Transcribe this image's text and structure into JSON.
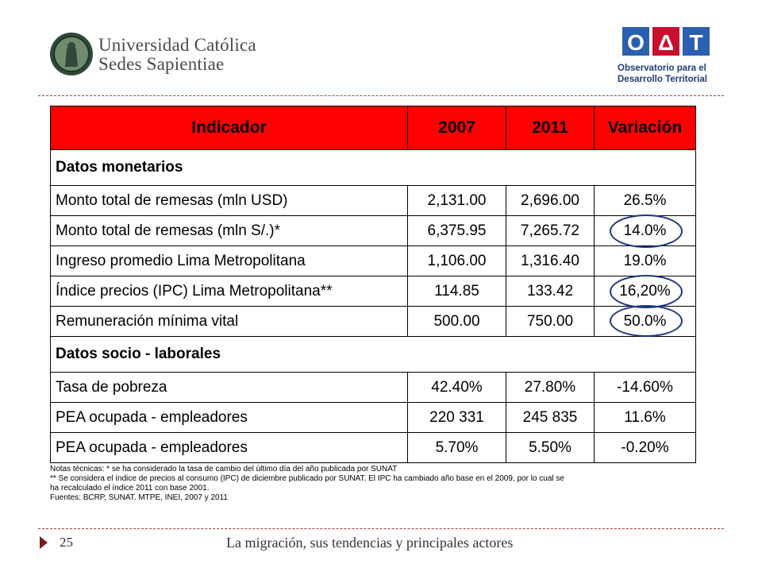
{
  "header": {
    "university_line1": "Universidad Católica",
    "university_line2": "Sedes Sapientiae",
    "odt_letters": [
      "O",
      "Δ",
      "T"
    ],
    "odt_line1": "Observatorio para el",
    "odt_line2": "Desarrollo Territorial"
  },
  "table": {
    "headers": [
      "Indicador",
      "2007",
      "2011",
      "Variación"
    ],
    "section1": "Datos monetarios",
    "rows1": [
      {
        "label": "Monto total de remesas (mln USD)",
        "v2007": "2,131.00",
        "v2011": "2,696.00",
        "var": "26.5%"
      },
      {
        "label": "Monto total de remesas (mln S/.)*",
        "v2007": "6,375.95",
        "v2011": "7,265.72",
        "var": "14.0%"
      },
      {
        "label": "Ingreso promedio Lima Metropolitana",
        "v2007": "1,106.00",
        "v2011": "1,316.40",
        "var": "19.0%"
      },
      {
        "label": "Índice precios (IPC) Lima Metropolitana**",
        "v2007": "114.85",
        "v2011": "133.42",
        "var": "16,20%"
      },
      {
        "label": "Remuneración mínima vital",
        "v2007": "500.00",
        "v2011": "750.00",
        "var": "50.0%"
      }
    ],
    "section2": "Datos socio - laborales",
    "rows2": [
      {
        "label": "Tasa de pobreza",
        "v2007": "42.40%",
        "v2011": "27.80%",
        "var": "-14.60%"
      },
      {
        "label": "PEA ocupada - empleadores",
        "v2007": "220 331",
        "v2011": "245 835",
        "var": "11.6%"
      },
      {
        "label": "PEA ocupada - empleadores",
        "v2007": "5.70%",
        "v2011": "5.50%",
        "var": "-0.20%"
      }
    ]
  },
  "notes": {
    "line1": "Notas técnicas: * se ha considerado la tasa de cambio del último día del año publicada por SUNAT",
    "line2": "** Se considera el índice de precios al consumo (IPC) de diciembre publicado por SUNAT. El IPC  ha cambiado año base en el 2009, por lo cual se",
    "line3": "ha recalculado el índice 2011 con base 2001.",
    "line4": "Fuentes: BCRP, SUNAT. MTPE, INEI, 2007 y 2011"
  },
  "footer": {
    "page_number": "25",
    "title": "La migración, sus tendencias y principales actores"
  },
  "colors": {
    "header_bg": "#ff0000",
    "circle": "#1f3580",
    "divider": "#a33a3a",
    "odt_blue": "#1f3c7a",
    "odt_red": "#c8102e"
  }
}
